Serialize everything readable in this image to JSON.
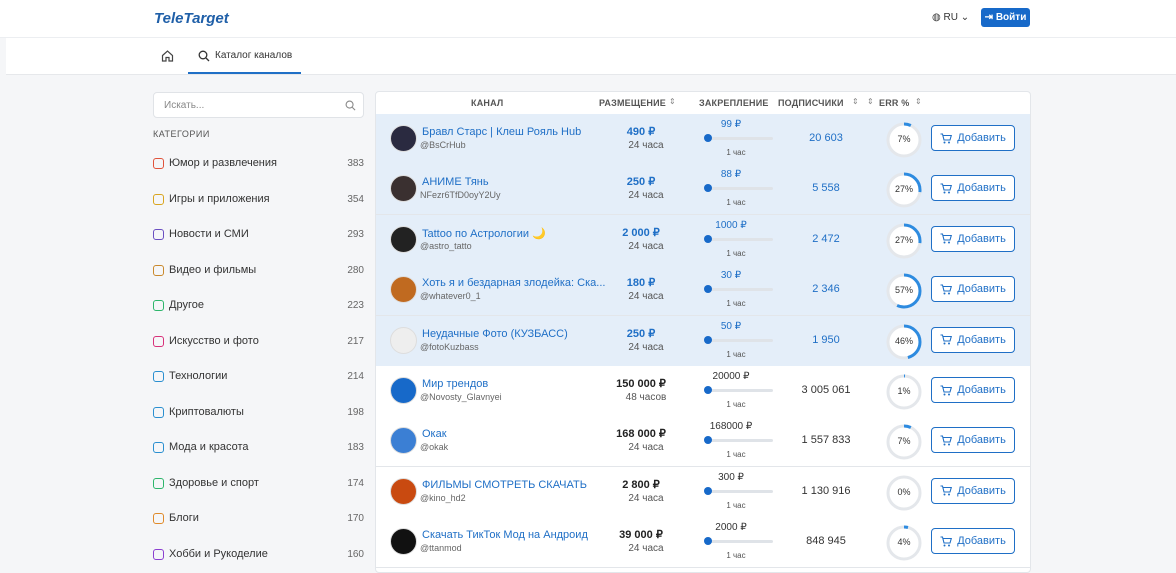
{
  "header": {
    "logo": "TeleTarget",
    "language": "RU",
    "login": "Войти"
  },
  "nav": {
    "tab": "Каталог каналов"
  },
  "sidebar": {
    "search_placeholder": "Искать...",
    "categories_title": "КАТЕГОРИИ",
    "categories": [
      {
        "name": "Юмор и развлечения",
        "count": 383
      },
      {
        "name": "Игры и приложения",
        "count": 354
      },
      {
        "name": "Новости и СМИ",
        "count": 293
      },
      {
        "name": "Видео и фильмы",
        "count": 280
      },
      {
        "name": "Другое",
        "count": 223
      },
      {
        "name": "Искусство и фото",
        "count": 217
      },
      {
        "name": "Технологии",
        "count": 214
      },
      {
        "name": "Криптовалюты",
        "count": 198
      },
      {
        "name": "Мода и красота",
        "count": 183
      },
      {
        "name": "Здоровье и спорт",
        "count": 174
      },
      {
        "name": "Блоги",
        "count": 170
      },
      {
        "name": "Хобби и Рукоделие",
        "count": 160
      }
    ]
  },
  "table": {
    "columns": [
      "КАНАЛ",
      "РАЗМЕЩЕНИЕ",
      "ЗАКРЕПЛЕНИЕ",
      "ПОДПИСЧИКИ",
      "ERR %"
    ],
    "add_label": "Добавить",
    "rows": [
      {
        "name": "Бравл Старс | Клеш Рояль Hub",
        "handle": "@BsCrHub",
        "price": "490 ₽",
        "duration": "24 часа",
        "pin_price": "99 ₽",
        "pin_duration": "1 час",
        "subscribers": "20 603",
        "err": {
          "value": 7,
          "label": "7%"
        },
        "highlighted": true
      },
      {
        "name": "АНИМЕ Тянь",
        "handle": "NFezr6TfD0oyY2Uy",
        "price": "250 ₽",
        "duration": "24 часа",
        "pin_price": "88 ₽",
        "pin_duration": "1 час",
        "subscribers": "5 558",
        "err": {
          "value": 27,
          "label": "27%"
        },
        "highlighted": true
      },
      {
        "name": "Tattoo по Астрологии 🌙",
        "handle": "@astro_tatto",
        "price": "2 000 ₽",
        "duration": "24 часа",
        "pin_price": "1000 ₽",
        "pin_duration": "1 час",
        "subscribers": "2 472",
        "err": {
          "value": 27,
          "label": "27%"
        },
        "highlighted": true
      },
      {
        "name": "Хоть я и бездарная злодейка: Ска...",
        "handle": "@whatever0_1",
        "price": "180 ₽",
        "duration": "24 часа",
        "pin_price": "30 ₽",
        "pin_duration": "1 час",
        "subscribers": "2 346",
        "err": {
          "value": 57,
          "label": "57%"
        },
        "highlighted": true
      },
      {
        "name": "Неудачные Фото (КУЗБАСС)",
        "handle": "@fotoKuzbass",
        "price": "250 ₽",
        "duration": "24 часа",
        "pin_price": "50 ₽",
        "pin_duration": "1 час",
        "subscribers": "1 950",
        "err": {
          "value": 46,
          "label": "46%"
        },
        "highlighted": true
      },
      {
        "name": "Мир трендов",
        "handle": "@Novosty_Glavnyei",
        "price": "150 000 ₽",
        "duration": "48 часов",
        "pin_price": "20000 ₽",
        "pin_duration": "1 час",
        "subscribers": "3 005 061",
        "err": {
          "value": 1,
          "label": "1%"
        },
        "highlighted": false
      },
      {
        "name": "Окак",
        "handle": "@okak",
        "price": "168 000 ₽",
        "duration": "24 часа",
        "pin_price": "168000 ₽",
        "pin_duration": "1 час",
        "subscribers": "1 557 833",
        "err": {
          "value": 7,
          "label": "7%"
        },
        "highlighted": false
      },
      {
        "name": "ФИЛЬМЫ СМОТРЕТЬ СКАЧАТЬ",
        "handle": "@kino_hd2",
        "price": "2 800 ₽",
        "duration": "24 часа",
        "pin_price": "300 ₽",
        "pin_duration": "1 час",
        "subscribers": "1 130 916",
        "err": {
          "value": 0,
          "label": "0%"
        },
        "highlighted": false
      },
      {
        "name": "Скачать ТикТок Мод на Андроид",
        "handle": "@ttanmod",
        "price": "39 000 ₽",
        "duration": "24 часа",
        "pin_price": "2000 ₽",
        "pin_duration": "1 час",
        "subscribers": "848 945",
        "err": {
          "value": 4,
          "label": "4%"
        },
        "highlighted": false
      }
    ]
  }
}
